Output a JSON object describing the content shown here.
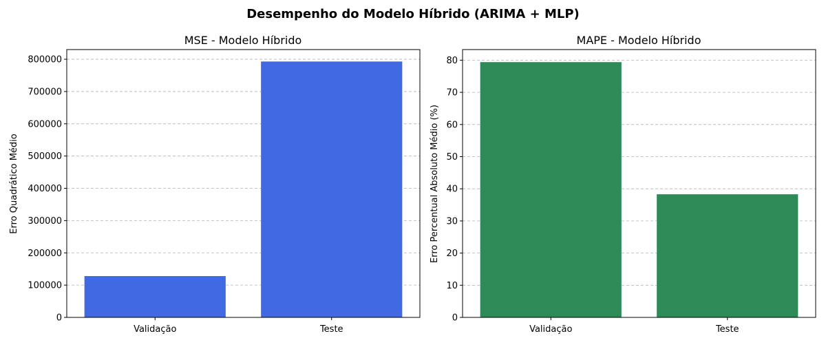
{
  "figure": {
    "title": "Desempenho do Modelo Híbrido (ARIMA + MLP)"
  },
  "chart_data": [
    {
      "type": "bar",
      "title": "MSE - Modelo Híbrido",
      "xlabel": "",
      "ylabel": "Erro Quadrático Médio",
      "categories": [
        "Validação",
        "Teste"
      ],
      "values": [
        128000,
        793000
      ],
      "ylim": [
        0,
        830000
      ],
      "yticks": [
        0,
        100000,
        200000,
        300000,
        400000,
        500000,
        600000,
        700000,
        800000
      ],
      "color": "#4169E1",
      "grid": "y-dashed"
    },
    {
      "type": "bar",
      "title": "MAPE - Modelo Híbrido",
      "xlabel": "",
      "ylabel": "Erro Percentual Absoluto Médio (%)",
      "categories": [
        "Validação",
        "Teste"
      ],
      "values": [
        79.4,
        38.3
      ],
      "ylim": [
        0,
        83.3
      ],
      "yticks": [
        0,
        10,
        20,
        30,
        40,
        50,
        60,
        70,
        80
      ],
      "color": "#2E8B57",
      "grid": "y-dashed"
    }
  ]
}
